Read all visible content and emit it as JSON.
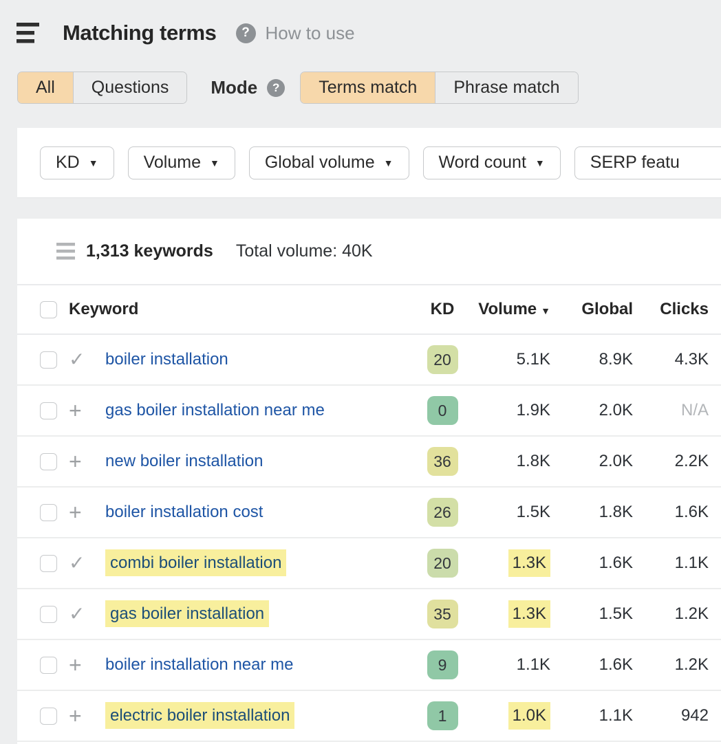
{
  "header": {
    "title": "Matching terms",
    "help_label": "How to use",
    "scope_tabs": [
      {
        "label": "All",
        "active": true
      },
      {
        "label": "Questions",
        "active": false
      }
    ],
    "mode_label": "Mode",
    "mode_tabs": [
      {
        "label": "Terms match",
        "active": true
      },
      {
        "label": "Phrase match",
        "active": false
      }
    ]
  },
  "filters": [
    {
      "label": "KD",
      "clipped": false
    },
    {
      "label": "Volume",
      "clipped": false
    },
    {
      "label": "Global volume",
      "clipped": false
    },
    {
      "label": "Word count",
      "clipped": false
    },
    {
      "label": "SERP featu",
      "clipped": true
    }
  ],
  "summary": {
    "keywords_count": "1,313 keywords",
    "total_volume": "Total volume: 40K"
  },
  "table": {
    "columns": [
      "Keyword",
      "KD",
      "Volume",
      "Global",
      "Clicks"
    ],
    "rows": [
      {
        "keyword": "boiler installation",
        "keyword_highlight": false,
        "icon": "check",
        "kd": "20",
        "kd_color": "#d3dfa6",
        "volume": "5.1K",
        "volume_highlight": false,
        "global": "8.9K",
        "clicks": "4.3K",
        "clicks_na": false
      },
      {
        "keyword": "gas boiler installation near me",
        "keyword_highlight": false,
        "icon": "plus",
        "kd": "0",
        "kd_color": "#90c8a6",
        "volume": "1.9K",
        "volume_highlight": false,
        "global": "2.0K",
        "clicks": "N/A",
        "clicks_na": true
      },
      {
        "keyword": "new boiler installation",
        "keyword_highlight": false,
        "icon": "plus",
        "kd": "36",
        "kd_color": "#e2e19c",
        "volume": "1.8K",
        "volume_highlight": false,
        "global": "2.0K",
        "clicks": "2.2K",
        "clicks_na": false
      },
      {
        "keyword": "boiler installation cost",
        "keyword_highlight": false,
        "icon": "plus",
        "kd": "26",
        "kd_color": "#d3dfa6",
        "volume": "1.5K",
        "volume_highlight": false,
        "global": "1.8K",
        "clicks": "1.6K",
        "clicks_na": false
      },
      {
        "keyword": "combi boiler installation",
        "keyword_highlight": true,
        "icon": "check",
        "kd": "20",
        "kd_color": "#cbdcab",
        "volume": "1.3K",
        "volume_highlight": true,
        "global": "1.6K",
        "clicks": "1.1K",
        "clicks_na": false
      },
      {
        "keyword": "gas boiler installation",
        "keyword_highlight": true,
        "icon": "check",
        "kd": "35",
        "kd_color": "#e0e09e",
        "volume": "1.3K",
        "volume_highlight": true,
        "global": "1.5K",
        "clicks": "1.2K",
        "clicks_na": false
      },
      {
        "keyword": "boiler installation near me",
        "keyword_highlight": false,
        "icon": "plus",
        "kd": "9",
        "kd_color": "#90c8a6",
        "volume": "1.1K",
        "volume_highlight": false,
        "global": "1.6K",
        "clicks": "1.2K",
        "clicks_na": false
      },
      {
        "keyword": "electric boiler installation",
        "keyword_highlight": true,
        "icon": "plus",
        "kd": "1",
        "kd_color": "#90c8a6",
        "volume": "1.0K",
        "volume_highlight": true,
        "global": "1.1K",
        "clicks": "942",
        "clicks_na": false
      }
    ]
  },
  "colors": {
    "accent_orange": "#f7d8ab",
    "highlight_yellow": "#f8ef9d",
    "kd_green": "#90c8a6",
    "kd_olive": "#d3dfa6",
    "kd_yellow": "#e2e19c",
    "link_blue": "#1e55a5"
  }
}
